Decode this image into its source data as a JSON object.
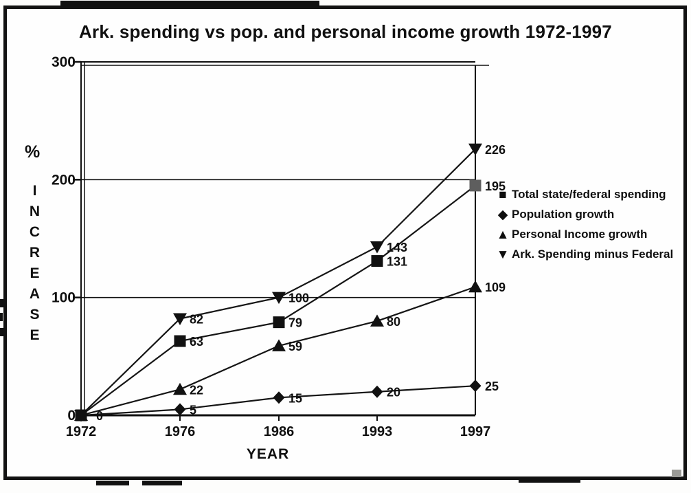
{
  "origin_label": "0",
  "colors": {
    "ink": "#101010",
    "paper": "#fefefe",
    "spending_1997_marker": "#5e5e5e"
  },
  "chart_data": {
    "type": "line",
    "title": "Ark. spending vs pop. and personal income growth 1972-1997",
    "xlabel": "YEAR",
    "ylabel": "INCREASE",
    "ylabel_unit": "%",
    "ylim": [
      0,
      300
    ],
    "y_ticks": [
      0,
      100,
      200,
      300
    ],
    "grid": true,
    "legend_position": "right",
    "categories": [
      "1972",
      "1976",
      "1986",
      "1993",
      "1997"
    ],
    "series": [
      {
        "name": "Total state/federal spending",
        "marker": "square",
        "values": [
          0,
          63,
          79,
          131,
          195
        ],
        "point_fills": [
          null,
          null,
          null,
          null,
          "#5e5e5e"
        ]
      },
      {
        "name": "Population growth",
        "marker": "diamond",
        "values": [
          0,
          5,
          15,
          20,
          25
        ],
        "point_fills": [
          null,
          null,
          null,
          null,
          null
        ]
      },
      {
        "name": "Personal Income growth",
        "marker": "triangle-up",
        "values": [
          0,
          22,
          59,
          80,
          109
        ],
        "point_fills": [
          null,
          null,
          null,
          null,
          null
        ]
      },
      {
        "name": "Ark. Spending minus Federal",
        "marker": "triangle-down",
        "values": [
          0,
          82,
          100,
          143,
          226
        ],
        "point_fills": [
          null,
          null,
          null,
          null,
          null
        ]
      }
    ]
  }
}
